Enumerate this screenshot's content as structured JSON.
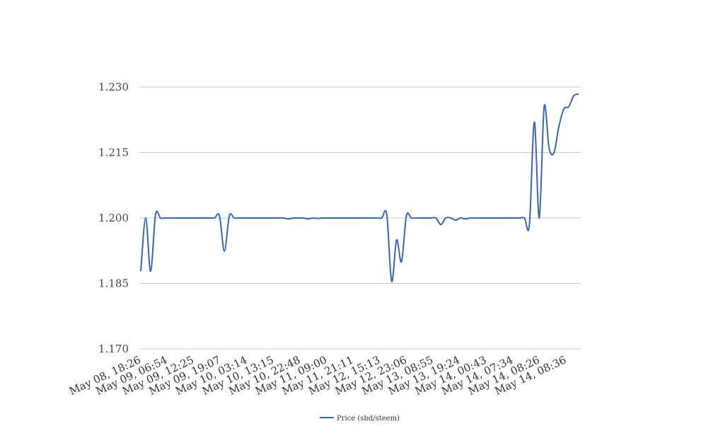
{
  "chart_data": {
    "type": "line",
    "title": "",
    "xlabel": "",
    "ylabel": "",
    "ylim": [
      1.17,
      1.23
    ],
    "yticks": [
      "1.170",
      "1.185",
      "1.200",
      "1.215",
      "1.230"
    ],
    "grid": "horizontal",
    "legend_position": "bottom",
    "xtick_labels": [
      "May 08, 18:26",
      "May 09, 06:54",
      "May 09, 12:25",
      "May 09, 19:07",
      "May 10, 03:14",
      "May 10, 13:15",
      "May 10, 22:48",
      "May 11, 09:00",
      "May 11, 21:11",
      "May 12, 15:13",
      "May 12, 23:06",
      "May 13, 08:55",
      "May 13, 19:24",
      "May 14, 00:43",
      "May 14, 07:34",
      "May 14, 08:26",
      "May 14, 08:36"
    ],
    "series": [
      {
        "name": "Price (sbd/steem)",
        "color": "#3a65b5",
        "values": [
          1.1878,
          1.2,
          1.1878,
          1.2008,
          1.2,
          1.2,
          1.2,
          1.2,
          1.2,
          1.2,
          1.2,
          1.2,
          1.2,
          1.2,
          1.2,
          1.2,
          1.2005,
          1.1924,
          1.2005,
          1.2,
          1.2,
          1.2,
          1.2,
          1.2,
          1.2,
          1.2,
          1.2,
          1.2,
          1.2,
          1.2,
          1.1998,
          1.2,
          1.2,
          1.2,
          1.1998,
          1.2,
          1.1999,
          1.2,
          1.2,
          1.2,
          1.2,
          1.2,
          1.2,
          1.2,
          1.2,
          1.2,
          1.2,
          1.2,
          1.2,
          1.2,
          1.2008,
          1.1855,
          1.195,
          1.19,
          1.2005,
          1.2,
          1.2,
          1.2,
          1.2,
          1.2,
          1.2,
          1.1985,
          1.2,
          1.2,
          1.1995,
          1.2,
          1.1998,
          1.2,
          1.2,
          1.2,
          1.2,
          1.2,
          1.2,
          1.2,
          1.2,
          1.2,
          1.2,
          1.2,
          1.2,
          1.1985,
          1.222,
          1.2,
          1.2255,
          1.216,
          1.215,
          1.221,
          1.225,
          1.2255,
          1.228,
          1.2284
        ]
      }
    ]
  }
}
